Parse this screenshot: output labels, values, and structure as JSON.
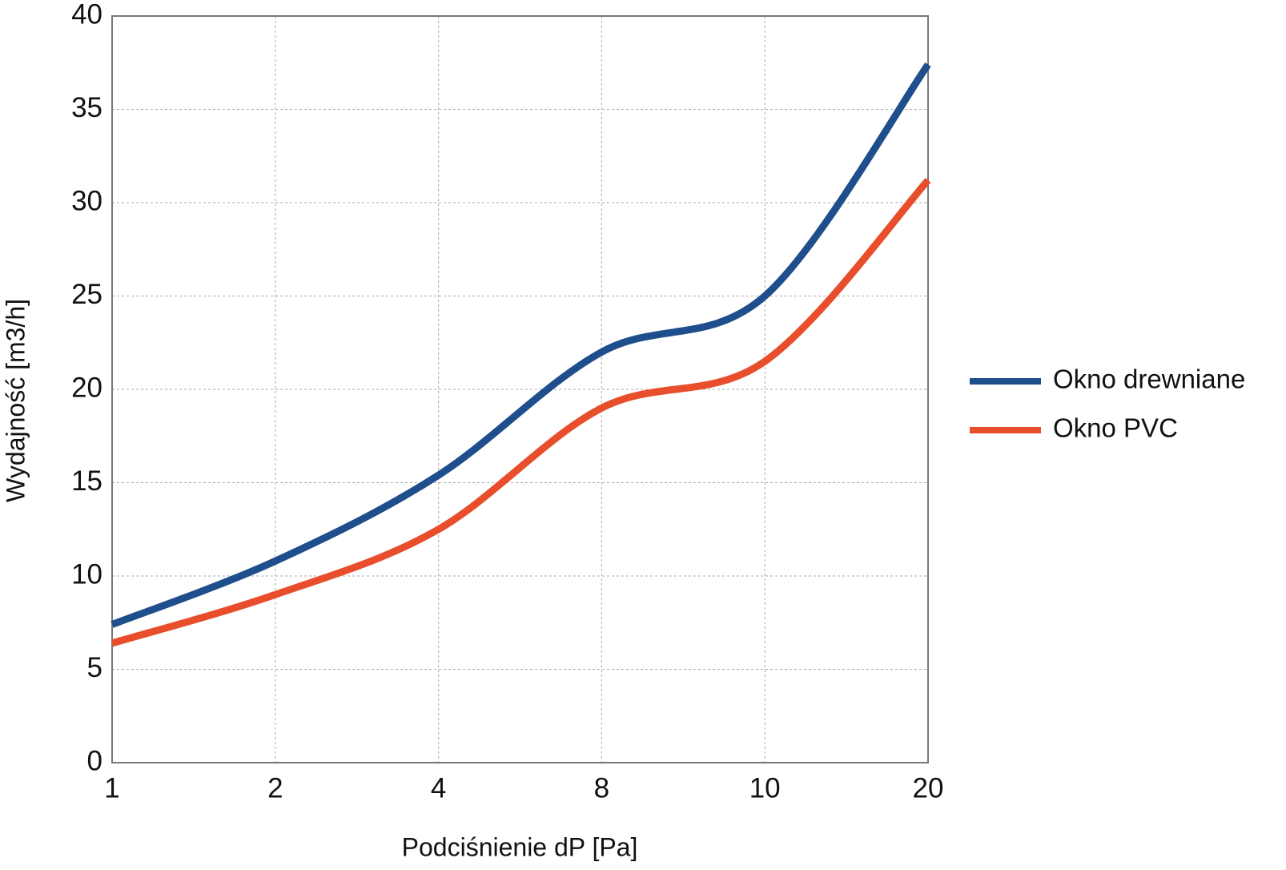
{
  "chart_data": {
    "type": "line",
    "x_label": "Podciśnienie dP [Pa]",
    "y_label": "Wydajność [m3/h]",
    "categories": [
      "1",
      "2",
      "4",
      "8",
      "10",
      "20"
    ],
    "series": [
      {
        "name": "Okno drewniane",
        "color": "#1f4e8c",
        "values": [
          7.4,
          10.8,
          15.4,
          22.0,
          25.0,
          37.4
        ]
      },
      {
        "name": "Okno PVC",
        "color": "#e84e2c",
        "values": [
          6.4,
          9.0,
          12.5,
          19.0,
          21.5,
          31.2
        ]
      }
    ],
    "ylim": [
      0,
      40
    ],
    "yticks": [
      0,
      5,
      10,
      15,
      20,
      25,
      30,
      35,
      40
    ],
    "grid": true,
    "legend": "right",
    "smooth": true
  }
}
